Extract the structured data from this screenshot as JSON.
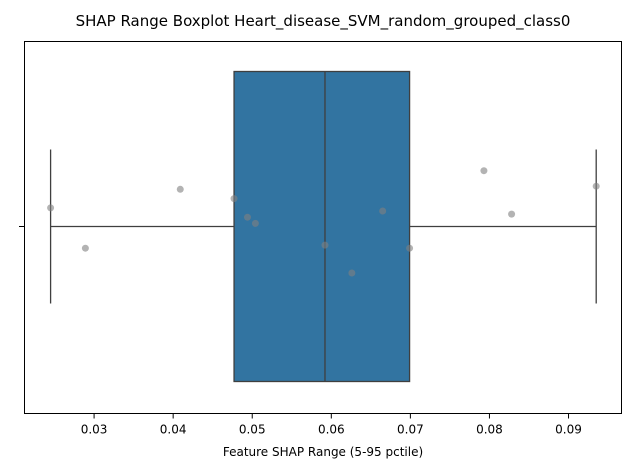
{
  "chart_data": {
    "type": "boxplot",
    "title": "SHAP Range Boxplot Heart_disease_SVM_random_grouped_class0",
    "xlabel": "Feature SHAP Range (5-95 pctile)",
    "ylabel": "",
    "xlim": [
      0.0212,
      0.0967
    ],
    "x_ticks": [
      0.03,
      0.04,
      0.05,
      0.06,
      0.07,
      0.08,
      0.09
    ],
    "x_tick_labels": [
      "0.03",
      "0.04",
      "0.05",
      "0.06",
      "0.07",
      "0.08",
      "0.09"
    ],
    "orientation": "horizontal",
    "grid": false,
    "box": {
      "whisker_low": 0.0245,
      "q1": 0.0477,
      "median": 0.0592,
      "q3": 0.0699,
      "whisker_high": 0.0935,
      "color": "#3274a1"
    },
    "points": [
      {
        "x": 0.0245,
        "jitter": 0.06
      },
      {
        "x": 0.0289,
        "jitter": -0.07
      },
      {
        "x": 0.0409,
        "jitter": 0.12
      },
      {
        "x": 0.0477,
        "jitter": 0.09
      },
      {
        "x": 0.0494,
        "jitter": 0.03
      },
      {
        "x": 0.0504,
        "jitter": 0.01
      },
      {
        "x": 0.0592,
        "jitter": -0.06
      },
      {
        "x": 0.0626,
        "jitter": -0.15
      },
      {
        "x": 0.0665,
        "jitter": 0.05
      },
      {
        "x": 0.0699,
        "jitter": -0.07
      },
      {
        "x": 0.0793,
        "jitter": 0.18
      },
      {
        "x": 0.0828,
        "jitter": 0.04
      },
      {
        "x": 0.0935,
        "jitter": 0.13
      }
    ],
    "point_color": "#808080"
  }
}
